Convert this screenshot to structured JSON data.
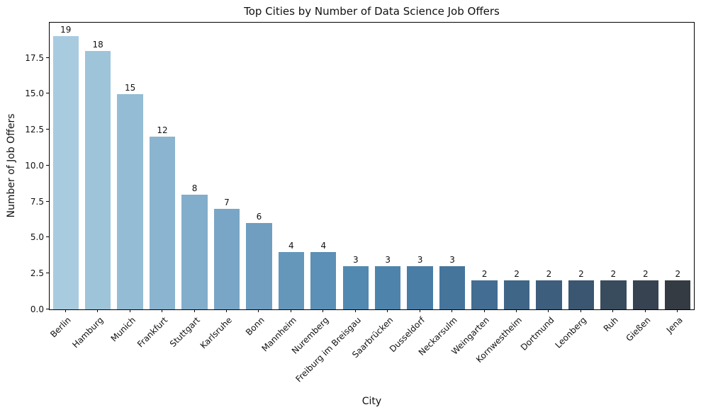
{
  "chart_data": {
    "type": "bar",
    "title": "Top Cities by Number of Data Science Job Offers",
    "xlabel": "City",
    "ylabel": "Number of Job Offers",
    "categories": [
      "Berlin",
      "Hamburg",
      "Munich",
      "Frankfurt",
      "Stuttgart",
      "Karlsruhe",
      "Bonn",
      "Mannheim",
      "Nuremberg",
      "Freiburg im Breisgau",
      "Saarbrücken",
      "Dusseldorf",
      "Neckarsulm",
      "Weingarten",
      "Kornwestheim",
      "Dortmund",
      "Leonberg",
      "Ruh",
      "Gießen",
      "Jena"
    ],
    "values": [
      19,
      18,
      15,
      12,
      8,
      7,
      6,
      4,
      4,
      3,
      3,
      3,
      3,
      2,
      2,
      2,
      2,
      2,
      2,
      2
    ],
    "bar_value_labels": [
      "19",
      "18",
      "15",
      "12",
      "8",
      "7",
      "6",
      "4",
      "4",
      "3",
      "3",
      "3",
      "3",
      "2",
      "2",
      "2",
      "2",
      "2",
      "2",
      "2"
    ],
    "ylim": [
      0,
      19.95
    ],
    "yticks": [
      0,
      2.5,
      5,
      7.5,
      10,
      12.5,
      15,
      17.5
    ],
    "ytick_labels": [
      "0.0",
      "2.5",
      "5.0",
      "7.5",
      "10.0",
      "12.5",
      "15.0",
      "17.5"
    ],
    "grid": false,
    "legend": "none",
    "bar_colors": [
      "#a8cbe0",
      "#9ec4da",
      "#94bcd5",
      "#8bb4d0",
      "#82adcb",
      "#79a6c6",
      "#6f9ec0",
      "#6597bb",
      "#5c90b6",
      "#5289b1",
      "#4e84ac",
      "#4a7da6",
      "#46759c",
      "#436d92",
      "#406687",
      "#3d5e7c",
      "#3a5671",
      "#394c5d",
      "#374350",
      "#353b43"
    ],
    "axis_color": "#000000",
    "background_color": "#ffffff"
  }
}
